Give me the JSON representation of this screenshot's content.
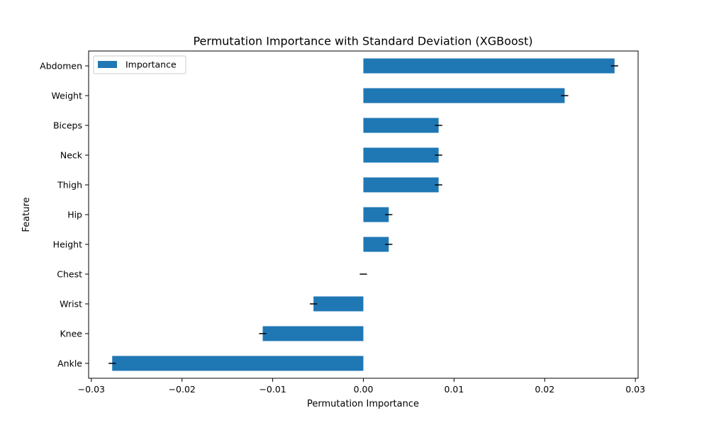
{
  "chart_data": {
    "type": "bar",
    "orientation": "horizontal",
    "title": "Permutation Importance with Standard Deviation (XGBoost)",
    "xlabel": "Permutation Importance",
    "ylabel": "Feature",
    "xlim": [
      -0.0303,
      0.0303
    ],
    "xticks": [
      -0.03,
      -0.02,
      -0.01,
      0.0,
      0.01,
      0.02,
      0.03
    ],
    "xtick_labels": [
      "−0.03",
      "−0.02",
      "−0.01",
      "0.00",
      "0.01",
      "0.02",
      "0.03"
    ],
    "categories": [
      "Abdomen",
      "Weight",
      "Biceps",
      "Neck",
      "Thigh",
      "Hip",
      "Height",
      "Chest",
      "Wrist",
      "Knee",
      "Ankle"
    ],
    "series": [
      {
        "name": "Importance",
        "color": "#1f77b4",
        "values": [
          0.0277,
          0.0222,
          0.0083,
          0.0083,
          0.0083,
          0.0028,
          0.0028,
          0.0,
          -0.0055,
          -0.0111,
          -0.0277
        ],
        "std": [
          0.0004,
          0.0004,
          0.0004,
          0.0004,
          0.0004,
          0.0004,
          0.0004,
          0.0004,
          0.0004,
          0.0004,
          0.0004
        ]
      }
    ],
    "legend": {
      "position": "top-left",
      "label": "Importance"
    },
    "grid": false,
    "error_bar_color": "#000000"
  }
}
